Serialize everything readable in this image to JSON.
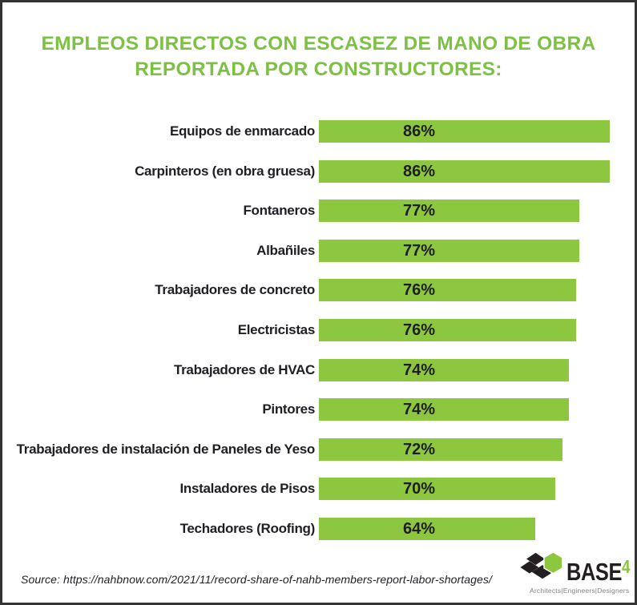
{
  "title": {
    "line1": "EMPLEOS DIRECTOS CON ESCASEZ DE MANO DE OBRA",
    "line2": "REPORTADA POR CONSTRUCTORES:"
  },
  "chart_data": {
    "type": "bar",
    "orientation": "horizontal",
    "categories": [
      "Equipos de enmarcado",
      "Carpinteros (en obra gruesa)",
      "Fontaneros",
      "Albañiles",
      "Trabajadores de concreto",
      "Electricistas",
      "Trabajadores de HVAC",
      "Pintores",
      "Trabajadores de instalación de Paneles de Yeso",
      "Instaladores de Pisos",
      "Techadores (Roofing)"
    ],
    "values": [
      86,
      86,
      77,
      77,
      76,
      76,
      74,
      74,
      72,
      70,
      64
    ],
    "value_suffix": "%",
    "xlim": [
      0,
      100
    ],
    "grid": false,
    "legend": false,
    "bar_color": "#8DC63F",
    "value_label_color": "#1E1E24",
    "category_label_color": "#1E1E24",
    "title": "EMPLEOS DIRECTOS CON ESCASEZ DE MANO DE OBRA REPORTADA POR CONSTRUCTORES:"
  },
  "source": {
    "text": "Source: https://nahbnow.com/2021/11/record-share-of-nahb-members-report-labor-shortages/"
  },
  "logo": {
    "word": "BASE",
    "suffix": "4",
    "tagline": "Architects|Engineers|Designers"
  },
  "colors": {
    "title_green": "#7CC142",
    "bar_green": "#8DC63F",
    "text_dark": "#1E1E24",
    "logo_black": "#231F20",
    "tagline_gray": "#808285",
    "frame_border": "#333333"
  }
}
